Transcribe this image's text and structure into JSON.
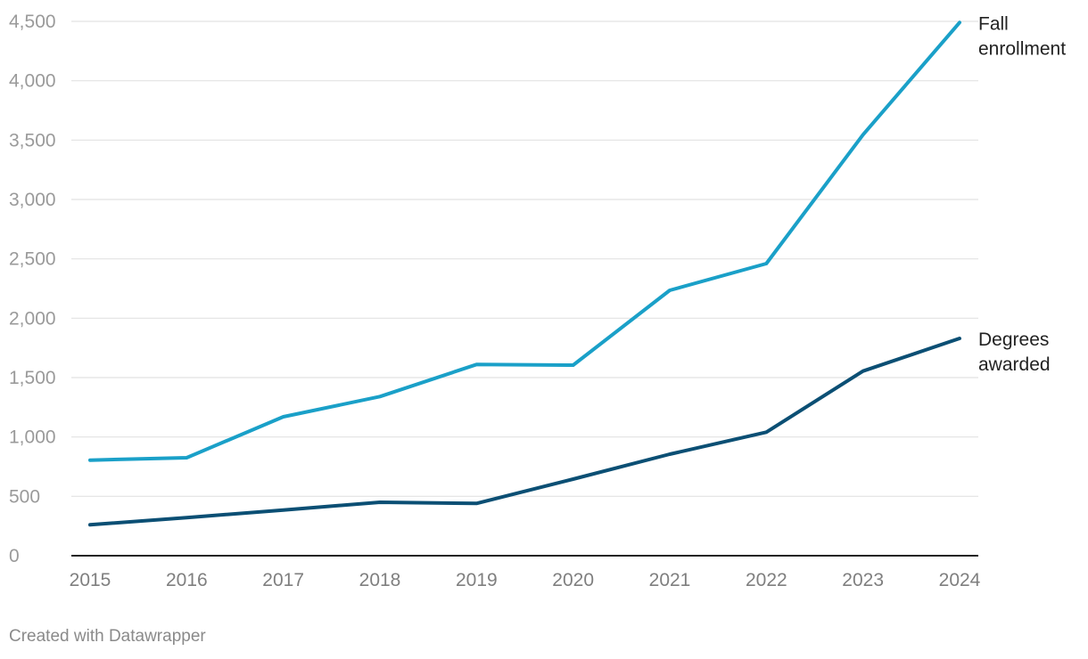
{
  "chart_data": {
    "type": "line",
    "x": [
      "2015",
      "2016",
      "2017",
      "2018",
      "2019",
      "2020",
      "2021",
      "2022",
      "2023",
      "2024"
    ],
    "ylim": [
      0,
      4500
    ],
    "yticks": [
      0,
      500,
      1000,
      1500,
      2000,
      2500,
      3000,
      3500,
      4000,
      4500
    ],
    "ytick_labels": [
      "0",
      "500",
      "1,000",
      "1,500",
      "2,000",
      "2,500",
      "3,000",
      "3,500",
      "4,000",
      "4,500"
    ],
    "grid": true,
    "series": [
      {
        "name": "Fall enrollment",
        "label_lines": [
          "Fall",
          "enrollment"
        ],
        "color": "#1aa0c8",
        "values": [
          805,
          825,
          1170,
          1340,
          1610,
          1605,
          2235,
          2460,
          3545,
          4490
        ]
      },
      {
        "name": "Degrees awarded",
        "label_lines": [
          "Degrees",
          "awarded"
        ],
        "color": "#0b4f74",
        "values": [
          260,
          320,
          385,
          450,
          440,
          645,
          855,
          1040,
          1555,
          1830
        ]
      }
    ]
  },
  "footer": {
    "credit": "Created with Datawrapper"
  }
}
